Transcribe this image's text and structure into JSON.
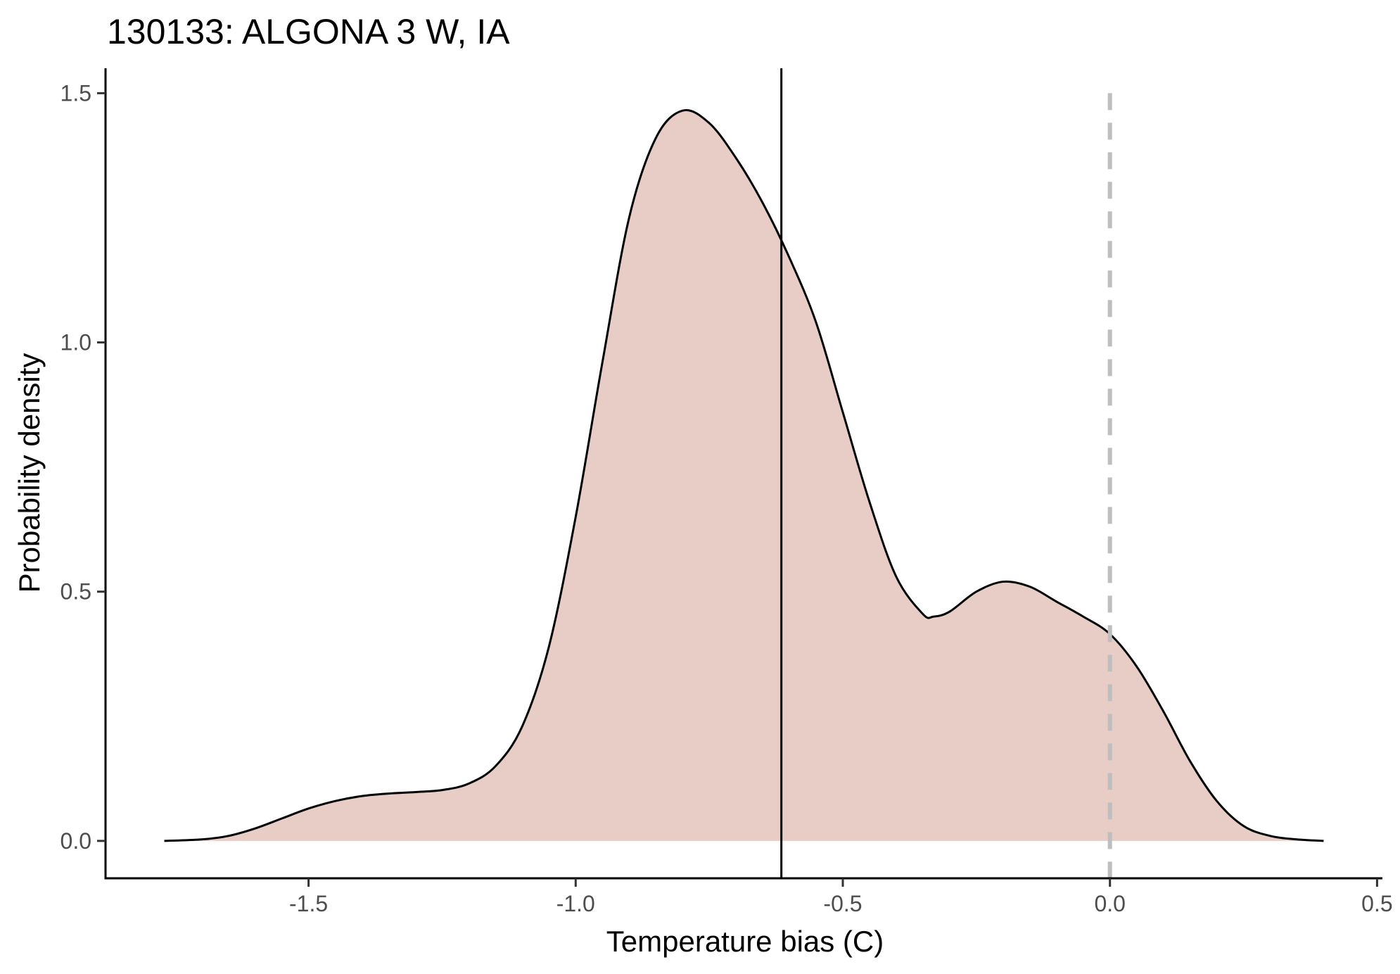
{
  "chart_data": {
    "type": "area",
    "title": "130133: ALGONA 3 W, IA",
    "xlabel": "Temperature bias (C)",
    "ylabel": "Probability density",
    "xlim": [
      -1.88,
      0.51
    ],
    "ylim": [
      -0.075,
      1.55
    ],
    "x_ticks": [
      -1.5,
      -1.0,
      -0.5,
      0.0,
      0.5
    ],
    "x_tick_labels": [
      "-1.5",
      "-1.0",
      "-0.5",
      "0.0",
      "0.5"
    ],
    "y_ticks": [
      0.0,
      0.5,
      1.0,
      1.5
    ],
    "y_tick_labels": [
      "0.0",
      "0.5",
      "1.0",
      "1.5"
    ],
    "grid": false,
    "legend": "none",
    "series": [
      {
        "values": [
          [
            -1.77,
            0.0
          ],
          [
            -1.7,
            0.003
          ],
          [
            -1.65,
            0.01
          ],
          [
            -1.6,
            0.025
          ],
          [
            -1.55,
            0.045
          ],
          [
            -1.5,
            0.065
          ],
          [
            -1.45,
            0.08
          ],
          [
            -1.4,
            0.09
          ],
          [
            -1.35,
            0.095
          ],
          [
            -1.3,
            0.098
          ],
          [
            -1.25,
            0.102
          ],
          [
            -1.2,
            0.115
          ],
          [
            -1.15,
            0.15
          ],
          [
            -1.1,
            0.23
          ],
          [
            -1.05,
            0.39
          ],
          [
            -1.0,
            0.65
          ],
          [
            -0.95,
            0.96
          ],
          [
            -0.9,
            1.25
          ],
          [
            -0.85,
            1.41
          ],
          [
            -0.8,
            1.465
          ],
          [
            -0.75,
            1.44
          ],
          [
            -0.7,
            1.37
          ],
          [
            -0.65,
            1.28
          ],
          [
            -0.6,
            1.17
          ],
          [
            -0.55,
            1.04
          ],
          [
            -0.5,
            0.86
          ],
          [
            -0.45,
            0.68
          ],
          [
            -0.4,
            0.53
          ],
          [
            -0.35,
            0.455
          ],
          [
            -0.33,
            0.45
          ],
          [
            -0.3,
            0.46
          ],
          [
            -0.25,
            0.5
          ],
          [
            -0.2,
            0.52
          ],
          [
            -0.15,
            0.51
          ],
          [
            -0.1,
            0.48
          ],
          [
            -0.05,
            0.45
          ],
          [
            0.0,
            0.415
          ],
          [
            0.05,
            0.35
          ],
          [
            0.1,
            0.26
          ],
          [
            0.15,
            0.16
          ],
          [
            0.2,
            0.08
          ],
          [
            0.25,
            0.03
          ],
          [
            0.3,
            0.01
          ],
          [
            0.35,
            0.003
          ],
          [
            0.4,
            0.0
          ]
        ]
      }
    ],
    "reference_lines": [
      {
        "x": -0.615,
        "style": "solid",
        "color": "#000000"
      },
      {
        "x": 0.0,
        "style": "dashed",
        "color": "#bebebe"
      }
    ],
    "fill_color": "#e8cdc7",
    "line_color": "#000000"
  }
}
